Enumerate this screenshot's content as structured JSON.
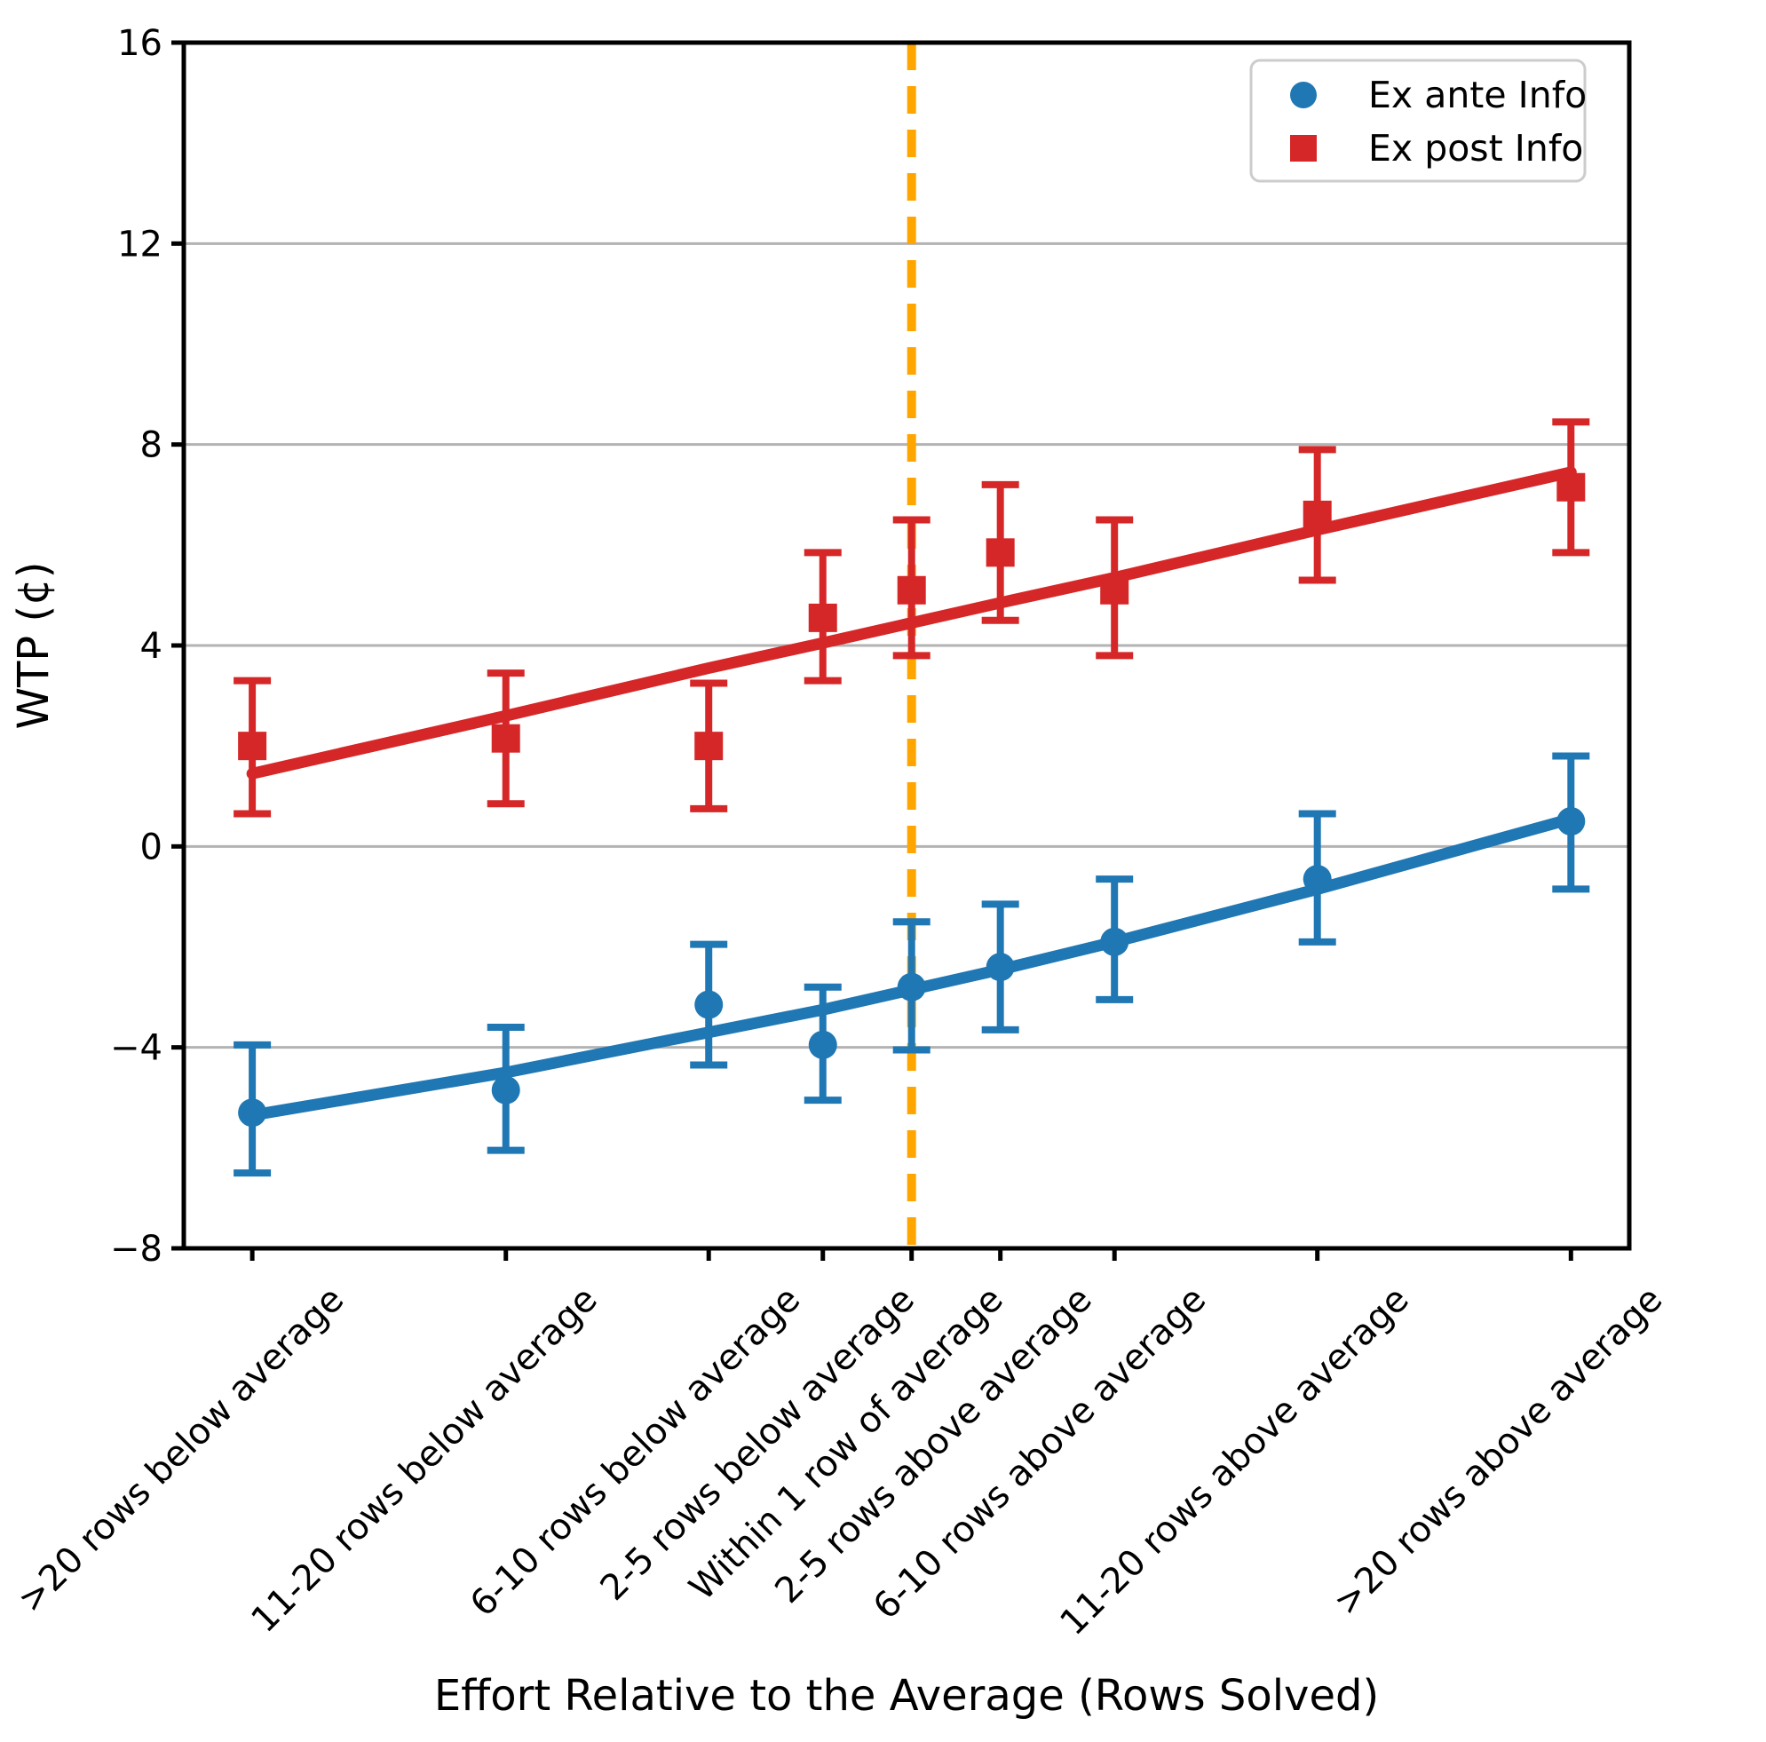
{
  "chart_data": {
    "type": "line",
    "title": "",
    "xlabel": "Effort Relative to the Average (Rows Solved)",
    "ylabel": "WTP (¢)",
    "categories": [
      ">20 rows below average",
      "11-20 rows below average",
      "6-10 rows below average",
      "2-5 rows below average",
      "Within 1 row of average",
      "2-5 rows above average",
      "6-10 rows above average",
      "11-20 rows above average",
      ">20 rows above average"
    ],
    "x_positions": [
      -26,
      -16,
      -8,
      -3.5,
      0,
      3.5,
      8,
      16,
      26
    ],
    "xlim": [
      -28.7,
      28.3
    ],
    "ylim": [
      -8,
      16
    ],
    "y_tick_values": [
      16,
      12,
      8,
      4,
      0,
      -4,
      -8
    ],
    "y_tick_labels": [
      "16",
      "12",
      "8",
      "4",
      "0",
      "−4",
      "−8"
    ],
    "grid": true,
    "grid_color": "#b3b3b3",
    "series": [
      {
        "name": "Ex ante Info",
        "marker": "circle",
        "color": "#1f77b4",
        "values": [
          -5.3,
          -4.85,
          -3.15,
          -3.95,
          -2.8,
          -2.4,
          -1.9,
          -0.65,
          0.5
        ],
        "ci_low": [
          -6.5,
          -6.05,
          -4.35,
          -5.05,
          -4.05,
          -3.65,
          -3.05,
          -1.9,
          -0.85
        ],
        "ci_high": [
          -3.95,
          -3.6,
          -1.95,
          -2.8,
          -1.5,
          -1.15,
          -0.65,
          0.65,
          1.8
        ],
        "trend_values": [
          -5.35,
          -4.5,
          -3.7,
          -3.25,
          -2.85,
          -2.45,
          -1.9,
          -0.85,
          0.55
        ]
      },
      {
        "name": "Ex post Info",
        "marker": "square",
        "color": "#d62728",
        "values": [
          2.0,
          2.15,
          2.0,
          4.55,
          5.1,
          5.85,
          5.1,
          6.6,
          7.15
        ],
        "ci_low": [
          0.65,
          0.85,
          0.75,
          3.3,
          3.8,
          4.5,
          3.8,
          5.3,
          5.85
        ],
        "ci_high": [
          3.3,
          3.45,
          3.25,
          5.85,
          6.5,
          7.2,
          6.5,
          7.9,
          8.45
        ],
        "trend_values": [
          1.45,
          2.6,
          3.55,
          4.05,
          4.45,
          4.85,
          5.35,
          6.3,
          7.45
        ]
      }
    ],
    "reference_line": {
      "x": 0,
      "color": "#FFA500",
      "style": "dashed"
    },
    "legend": {
      "position": "upper right",
      "entries": [
        "Ex ante Info",
        "Ex post Info"
      ]
    }
  }
}
